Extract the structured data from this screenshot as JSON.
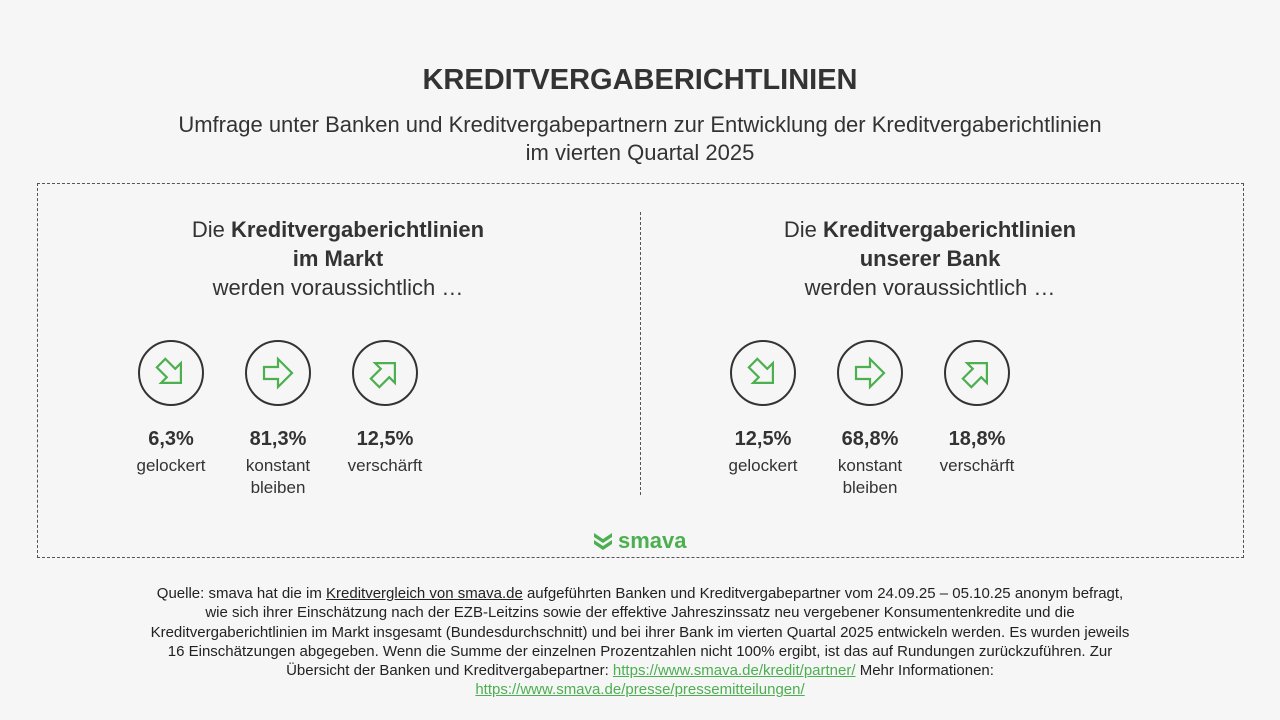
{
  "title": "KREDITVERGABERICHTLINIEN",
  "subtitle_line1": "Umfrage unter Banken und Kreditvergabepartnern zur Entwicklung der Kreditvergaberichtlinien",
  "subtitle_line2": "im vierten Quartal 2025",
  "accent_color": "#4caf50",
  "panels": [
    {
      "pre": "Die ",
      "bold1": "Kreditvergaberichtlinien",
      "bold2": "im Markt",
      "post": "werden voraussichtlich …",
      "stats": [
        {
          "icon": "arrow-down-right-icon",
          "pct": "6,3%",
          "label1": "gelockert",
          "label2": ""
        },
        {
          "icon": "arrow-right-icon",
          "pct": "81,3%",
          "label1": "konstant",
          "label2": "bleiben"
        },
        {
          "icon": "arrow-up-right-icon",
          "pct": "12,5%",
          "label1": "verschärft",
          "label2": ""
        }
      ]
    },
    {
      "pre": "Die ",
      "bold1": "Kreditvergaberichtlinien",
      "bold2": "unserer Bank",
      "post": "werden voraussichtlich …",
      "stats": [
        {
          "icon": "arrow-down-right-icon",
          "pct": "12,5%",
          "label1": "gelockert",
          "label2": ""
        },
        {
          "icon": "arrow-right-icon",
          "pct": "68,8%",
          "label1": "konstant",
          "label2": "bleiben"
        },
        {
          "icon": "arrow-up-right-icon",
          "pct": "18,8%",
          "label1": "verschärft",
          "label2": ""
        }
      ]
    }
  ],
  "logo": "smava",
  "source": {
    "t1": "Quelle: smava hat die im ",
    "link1": "Kreditvergleich von smava.de",
    "t2": " aufgeführten Banken und Kreditvergabepartner vom 24.09.25 – 05.10.25 anonym befragt, wie sich ihrer Einschätzung nach der EZB-Leitzins sowie der effektive Jahreszinssatz neu vergebener Konsumentenkredite und die Kreditvergaberichtlinien im Markt insgesamt (Bundesdurchschnitt) und bei ihrer Bank im vierten Quartal 2025 entwickeln werden. Es wurden jeweils 16 Einschätzungen abgegeben. Wenn die Summe der einzelnen Prozentzahlen nicht 100% ergibt, ist das auf Rundungen zurückzuführen. Zur Übersicht der Banken und Kreditvergabepartner: ",
    "link2": "https://www.smava.de/kredit/partner/",
    "t3": " Mehr Informationen: ",
    "link3": "https://www.smava.de/presse/pressemitteilungen/"
  }
}
